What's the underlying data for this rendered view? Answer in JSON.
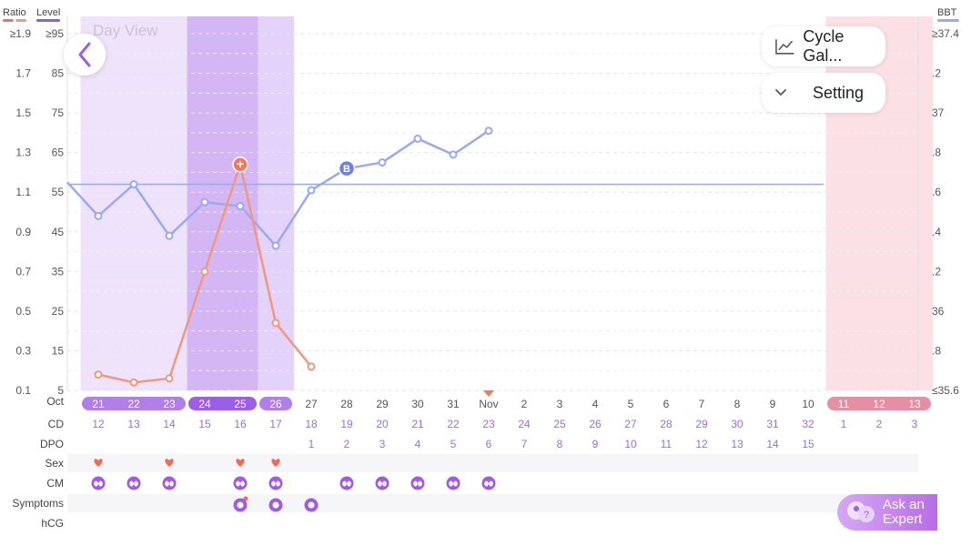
{
  "header": {
    "ratio_label": "Ratio",
    "level_label": "Level",
    "bbt_label": "BBT",
    "day_view": "Day View"
  },
  "buttons": {
    "cycle_gallery": "Cycle Gal...",
    "setting": "Setting",
    "ask_expert_line1": "Ask an",
    "ask_expert_line2": "Expert"
  },
  "colors": {
    "ratio": "#f2977f",
    "level": "#9aa9f2",
    "ratio_legend": "#e4736a",
    "level_legend": "#8a5fe0",
    "bbt_legend": "#9aa9f2",
    "fertile": "#efe3fb",
    "peak": "#d4b6f5",
    "high": "#e3d2fa",
    "period": "#fbe0e6",
    "dates_purple": "#b07fe8",
    "dates_dark_purple": "#9b5ee4",
    "dates_pink": "#e58fa4",
    "row_label": "#444444",
    "cd_text": "#9b6fd6"
  },
  "chart_data": {
    "type": "line",
    "y_left_ratio_ticks": [
      "≥1.9",
      "1.7",
      "1.5",
      "1.3",
      "1.1",
      "0.9",
      "0.7",
      "0.5",
      "0.3",
      "0.1"
    ],
    "y_left_level_ticks": [
      "≥95",
      "85",
      "75",
      "65",
      "55",
      "45",
      "35",
      "25",
      "15",
      "5"
    ],
    "y_right_bbt_ticks": [
      "≥37.4",
      ".2",
      "37",
      ".8",
      ".6",
      ".4",
      ".2",
      "36",
      ".8",
      "≤35.6"
    ],
    "level_ylim": [
      5,
      95
    ],
    "ratio_ylim": [
      0.1,
      1.9
    ],
    "bbt_ylim": [
      35.6,
      37.4
    ],
    "month_labels": [
      {
        "text": "Oct",
        "index": 0
      },
      {
        "text": "Nov",
        "index": 11
      }
    ],
    "dates": [
      "21",
      "22",
      "23",
      "24",
      "25",
      "26",
      "27",
      "28",
      "29",
      "30",
      "31",
      "Nov",
      "2",
      "3",
      "4",
      "5",
      "6",
      "7",
      "8",
      "9",
      "10",
      "11",
      "12",
      "13"
    ],
    "cd": [
      "12",
      "13",
      "14",
      "15",
      "16",
      "17",
      "18",
      "19",
      "20",
      "21",
      "22",
      "23",
      "24",
      "25",
      "26",
      "27",
      "28",
      "29",
      "30",
      "31",
      "32",
      "1",
      "2",
      "3"
    ],
    "dpo": [
      "",
      "",
      "",
      "",
      "",
      "",
      "1",
      "2",
      "3",
      "4",
      "5",
      "6",
      "7",
      "8",
      "9",
      "10",
      "11",
      "12",
      "13",
      "14",
      "15",
      "",
      "",
      ""
    ],
    "date_styles": [
      "f",
      "f",
      "f",
      "p",
      "p",
      "h",
      "",
      "",
      "",
      "",
      "",
      "",
      "",
      "",
      "",
      "",
      "",
      "",
      "",
      "",
      "",
      "m",
      "m",
      "m"
    ],
    "row_labels": [
      "CD",
      "DPO",
      "Sex",
      "CM",
      "Symptoms",
      "hCG"
    ],
    "series": [
      {
        "key": "bbt",
        "axis": "bbt",
        "points": [
          {
            "i": 0,
            "v": 36.48
          },
          {
            "i": 1,
            "v": 36.64
          },
          {
            "i": 2,
            "v": 36.38
          },
          {
            "i": 3,
            "v": 36.55
          },
          {
            "i": 4,
            "v": 36.53
          },
          {
            "i": 5,
            "v": 36.33
          },
          {
            "i": 6,
            "v": 36.61
          },
          {
            "i": 7,
            "v": 36.72
          },
          {
            "i": 8,
            "v": 36.75
          },
          {
            "i": 9,
            "v": 36.87
          },
          {
            "i": 10,
            "v": 36.79
          },
          {
            "i": 11,
            "v": 36.91
          }
        ],
        "extends_left_to": 36.65,
        "coverline": 36.64,
        "marker_label": "B",
        "marker_index": 7
      },
      {
        "key": "lh",
        "axis": "level",
        "points": [
          {
            "i": 0,
            "v": 9
          },
          {
            "i": 1,
            "v": 7
          },
          {
            "i": 2,
            "v": 8
          },
          {
            "i": 3,
            "v": 35
          },
          {
            "i": 4,
            "v": 62
          },
          {
            "i": 5,
            "v": 22
          },
          {
            "i": 6,
            "v": 11
          }
        ],
        "peak_index": 4,
        "peak_marker": "+"
      }
    ],
    "sex_days": [
      0,
      2,
      4,
      5
    ],
    "cm_days": [
      0,
      1,
      2,
      4,
      5,
      7,
      8,
      9,
      10,
      11
    ],
    "symptom_days": [
      4,
      5,
      6
    ],
    "today_index": 11
  }
}
